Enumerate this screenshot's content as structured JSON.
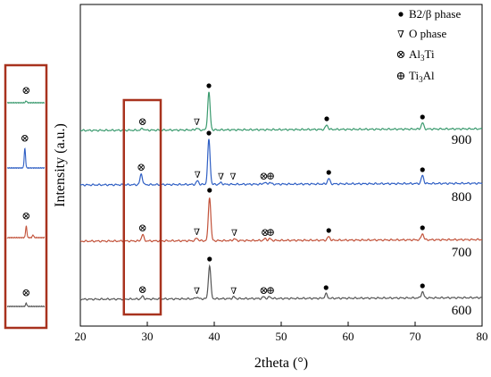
{
  "chart_data": {
    "type": "line",
    "xlabel": "2theta (°)",
    "ylabel": "Intensity (a.u.)",
    "xlim": [
      20,
      80
    ],
    "xticks": [
      20,
      30,
      40,
      50,
      60,
      70,
      80
    ],
    "grid": false,
    "legend_position": "top-right",
    "legend": [
      {
        "marker": "•",
        "text": "B2/β phase"
      },
      {
        "marker": "∇",
        "text": "O phase"
      },
      {
        "marker": "⊗",
        "text": "Al3Ti"
      },
      {
        "marker": "⊕",
        "text": "Ti3Al"
      }
    ],
    "series": [
      {
        "name": "900",
        "color": "#3a9a6e",
        "peaks": [
          {
            "x": 29.3,
            "h": 2
          },
          {
            "x": 37.4,
            "h": 2
          },
          {
            "x": 39.2,
            "h": 42
          },
          {
            "x": 56.8,
            "h": 5
          },
          {
            "x": 71.1,
            "h": 7
          }
        ],
        "markers": [
          {
            "x": 29.3,
            "symbol": "⊗"
          },
          {
            "x": 37.4,
            "symbol": "∇"
          },
          {
            "x": 39.2,
            "symbol": "•"
          },
          {
            "x": 56.8,
            "symbol": "•"
          },
          {
            "x": 71.1,
            "symbol": "•"
          }
        ]
      },
      {
        "name": "800",
        "color": "#2f5fc4",
        "peaks": [
          {
            "x": 29.1,
            "h": 12
          },
          {
            "x": 37.5,
            "h": 4
          },
          {
            "x": 39.2,
            "h": 50
          },
          {
            "x": 41.0,
            "h": 2
          },
          {
            "x": 47.5,
            "h": 2
          },
          {
            "x": 48.3,
            "h": 2
          },
          {
            "x": 57.1,
            "h": 6
          },
          {
            "x": 71.1,
            "h": 9
          }
        ],
        "markers": [
          {
            "x": 29.1,
            "symbol": "⊗"
          },
          {
            "x": 37.5,
            "symbol": "∇"
          },
          {
            "x": 39.2,
            "symbol": "•"
          },
          {
            "x": 41.0,
            "symbol": "∇"
          },
          {
            "x": 42.8,
            "symbol": "∇"
          },
          {
            "x": 47.4,
            "symbol": "⊗"
          },
          {
            "x": 48.4,
            "symbol": "⊕"
          },
          {
            "x": 57.1,
            "symbol": "•"
          },
          {
            "x": 71.1,
            "symbol": "•"
          }
        ]
      },
      {
        "name": "700",
        "color": "#c2523a",
        "peaks": [
          {
            "x": 29.3,
            "h": 7
          },
          {
            "x": 37.4,
            "h": 3
          },
          {
            "x": 39.3,
            "h": 49
          },
          {
            "x": 43.0,
            "h": 2
          },
          {
            "x": 47.6,
            "h": 2
          },
          {
            "x": 48.3,
            "h": 2
          },
          {
            "x": 57.1,
            "h": 4
          },
          {
            "x": 71.1,
            "h": 7
          }
        ],
        "markers": [
          {
            "x": 29.3,
            "symbol": "⊗"
          },
          {
            "x": 37.4,
            "symbol": "∇"
          },
          {
            "x": 39.3,
            "symbol": "•"
          },
          {
            "x": 43.0,
            "symbol": "∇"
          },
          {
            "x": 47.6,
            "symbol": "⊗"
          },
          {
            "x": 48.4,
            "symbol": "⊕"
          },
          {
            "x": 57.1,
            "symbol": "•"
          },
          {
            "x": 71.1,
            "symbol": "•"
          }
        ]
      },
      {
        "name": "600",
        "color": "#555555",
        "peaks": [
          {
            "x": 29.3,
            "h": 3
          },
          {
            "x": 37.4,
            "h": 2
          },
          {
            "x": 39.3,
            "h": 37
          },
          {
            "x": 42.9,
            "h": 2
          },
          {
            "x": 47.4,
            "h": 2
          },
          {
            "x": 48.3,
            "h": 2
          },
          {
            "x": 56.7,
            "h": 5
          },
          {
            "x": 71.1,
            "h": 7
          }
        ],
        "markers": [
          {
            "x": 29.3,
            "symbol": "⊗"
          },
          {
            "x": 37.4,
            "symbol": "∇"
          },
          {
            "x": 39.3,
            "symbol": "•"
          },
          {
            "x": 42.9,
            "symbol": "∇"
          },
          {
            "x": 47.4,
            "symbol": "⊗"
          },
          {
            "x": 48.4,
            "symbol": "⊕"
          },
          {
            "x": 56.7,
            "symbol": "•"
          },
          {
            "x": 71.1,
            "symbol": "•"
          }
        ]
      }
    ],
    "highlight_range": [
      26.5,
      32
    ],
    "inset": {
      "xrange": [
        26.5,
        32
      ],
      "marker": "⊗"
    }
  }
}
